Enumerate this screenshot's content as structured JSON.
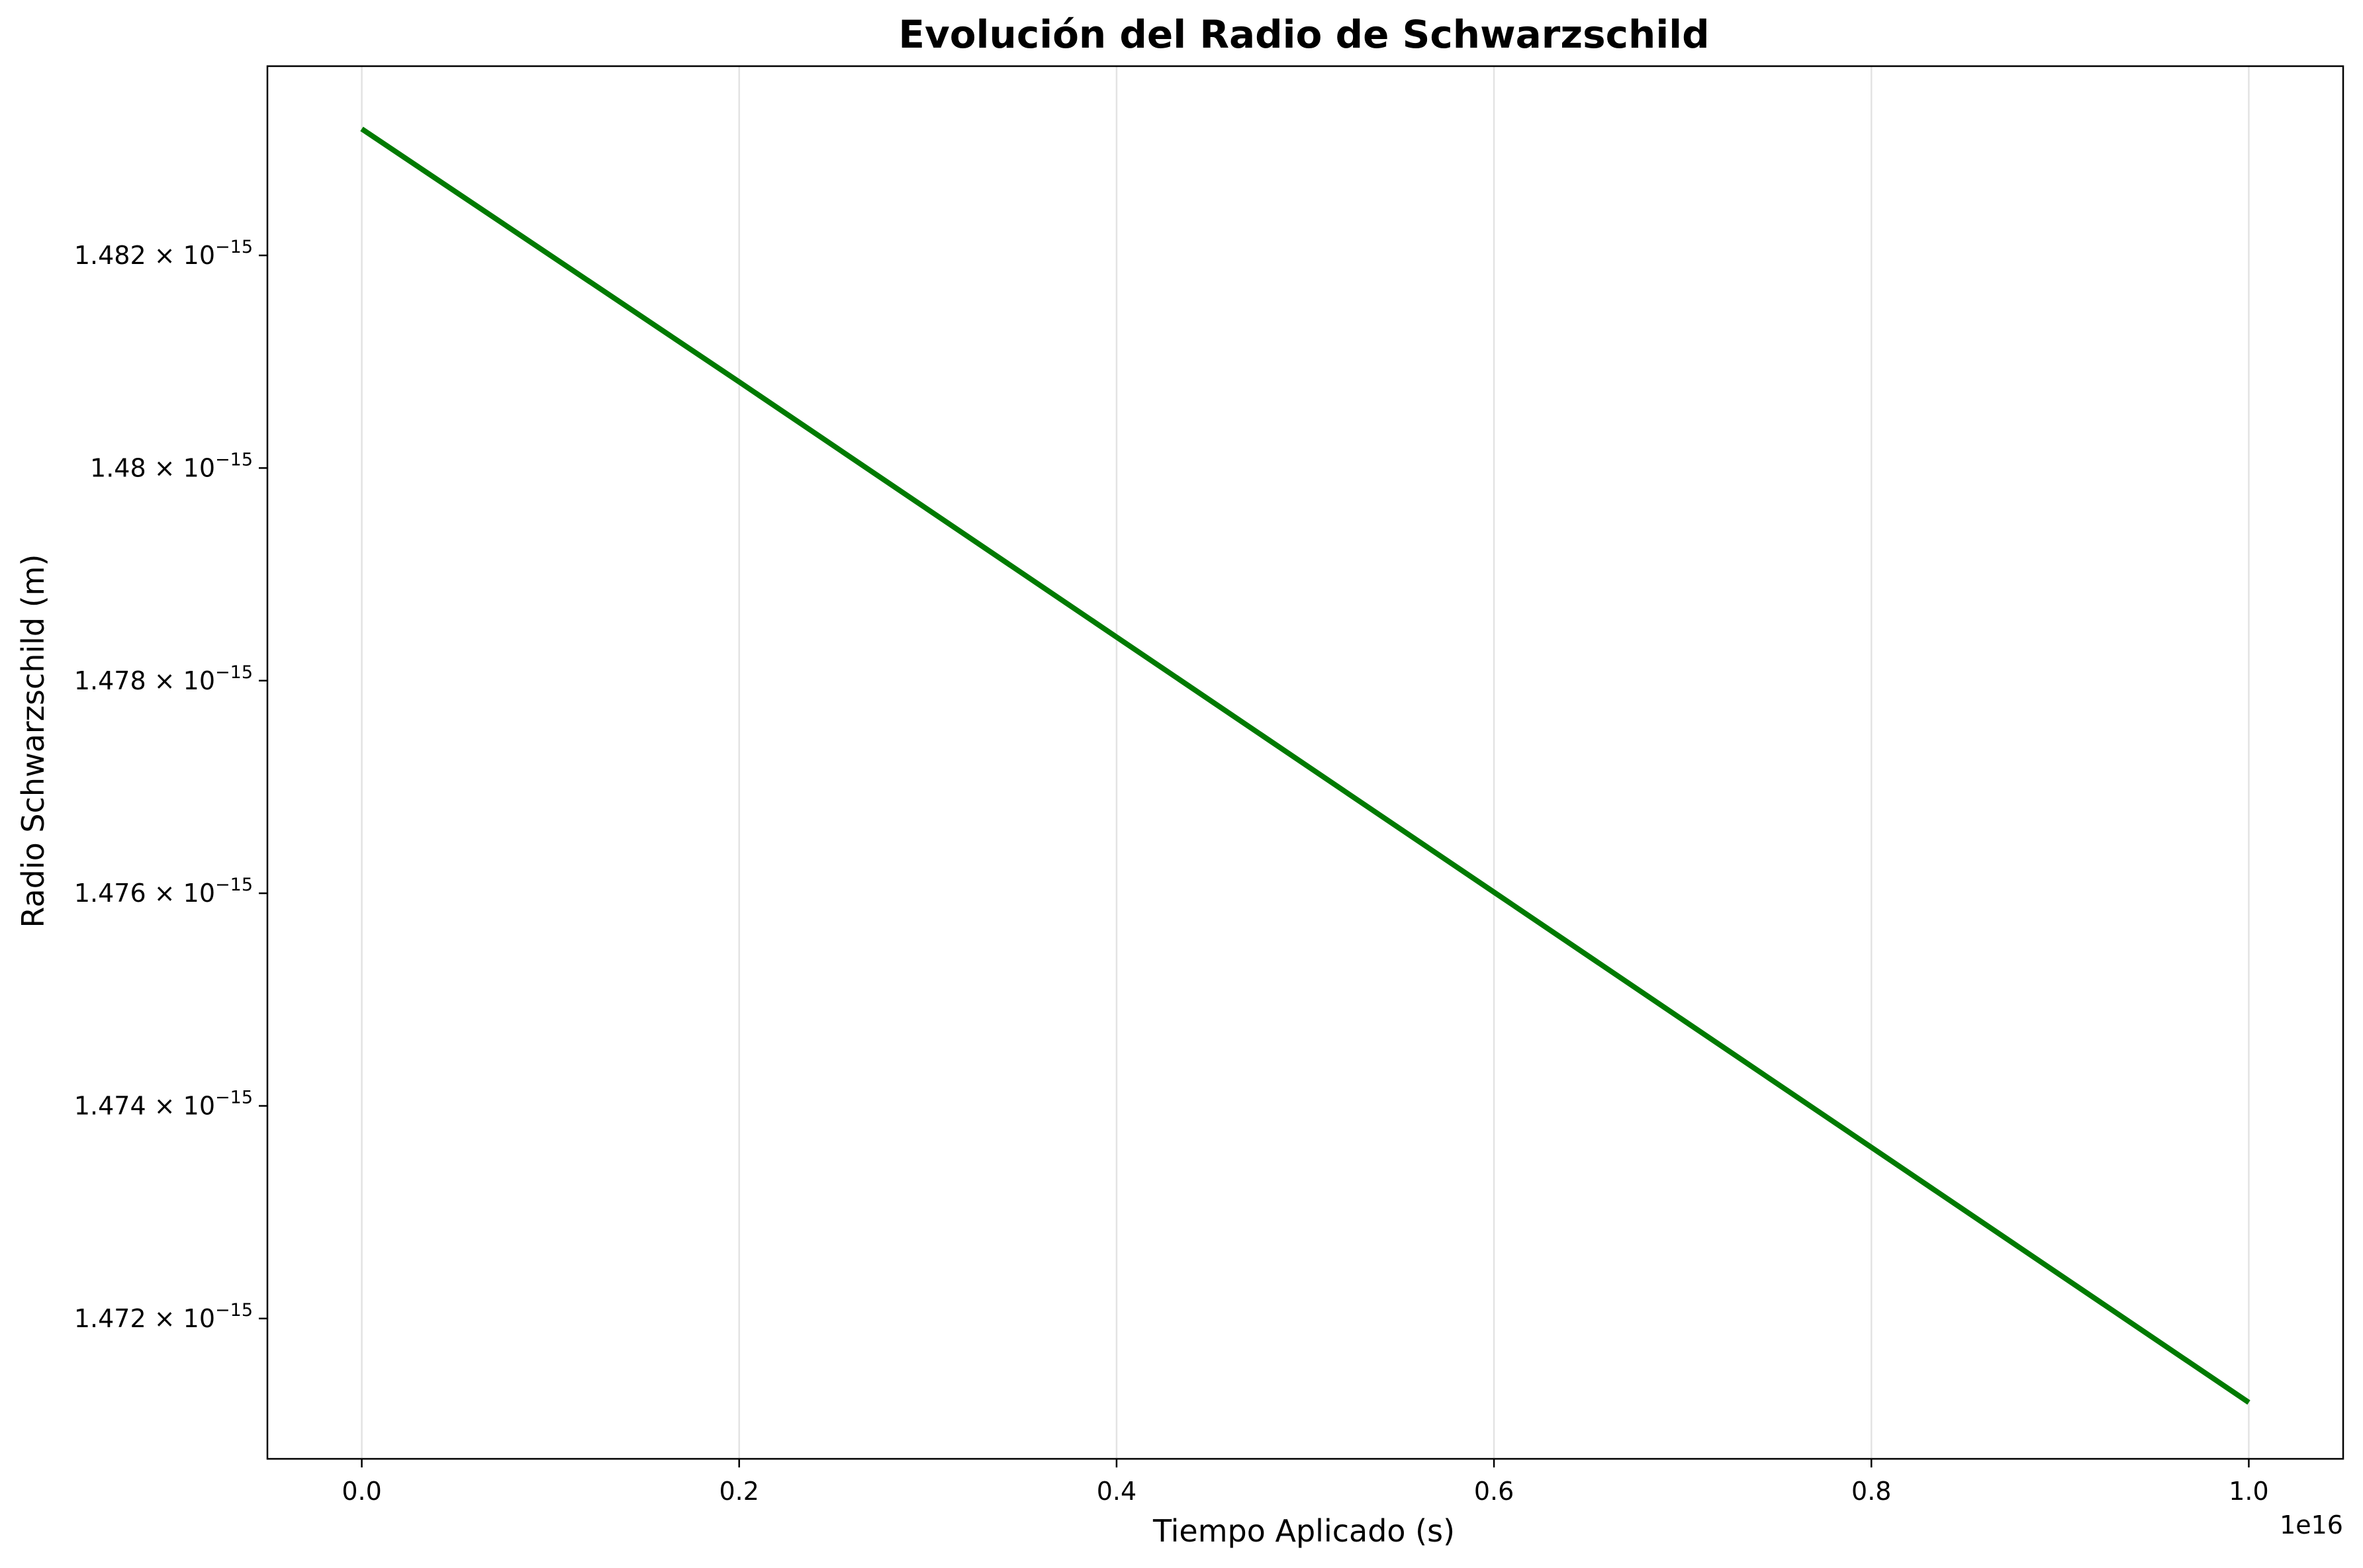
{
  "chart_data": {
    "type": "line",
    "title": "Evolución del Radio de Schwarzschild",
    "xlabel": "Tiempo Aplicado (s)",
    "ylabel": "Radio Schwarzschild (m)",
    "x_offset_label": "1e16",
    "xlim": [
      -0.05,
      1.05
    ],
    "ylim": [
      1.47068,
      1.48378
    ],
    "x_ticks": [
      {
        "value": 0.0,
        "label": "0.0"
      },
      {
        "value": 0.2,
        "label": "0.2"
      },
      {
        "value": 0.4,
        "label": "0.4"
      },
      {
        "value": 0.6,
        "label": "0.6"
      },
      {
        "value": 0.8,
        "label": "0.8"
      },
      {
        "value": 1.0,
        "label": "1.0"
      }
    ],
    "y_ticks": [
      {
        "value": 1.482,
        "mantissa": "1.482",
        "exponent": "−15"
      },
      {
        "value": 1.48,
        "mantissa": "1.48",
        "exponent": "−15"
      },
      {
        "value": 1.478,
        "mantissa": "1.478",
        "exponent": "−15"
      },
      {
        "value": 1.476,
        "mantissa": "1.476",
        "exponent": "−15"
      },
      {
        "value": 1.474,
        "mantissa": "1.474",
        "exponent": "−15"
      },
      {
        "value": 1.472,
        "mantissa": "1.472",
        "exponent": "−15"
      }
    ],
    "grid": "vertical",
    "series": [
      {
        "color": "#007a00",
        "x": [
          0.0,
          0.2,
          0.4,
          0.6,
          0.8,
          1.0
        ],
        "y": [
          1.48319,
          1.48081,
          1.47841,
          1.47601,
          1.47361,
          1.47121
        ]
      }
    ]
  }
}
